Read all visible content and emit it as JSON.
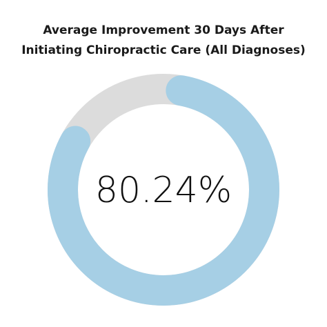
{
  "chart_data": {
    "type": "pie",
    "variant": "donut",
    "title": "Average Improvement 30 Days After Initiating Chiropractic Care (All Diagnoses)",
    "title_lines": [
      "Average Improvement 30 Days After",
      "Initiating Chiropractic Care (All Diagnoses)"
    ],
    "center_label": "80.24%",
    "value_percent": 80.24,
    "track_color": "#dcdcdc",
    "fill_color": "#a6cfe5",
    "legend": "none"
  }
}
